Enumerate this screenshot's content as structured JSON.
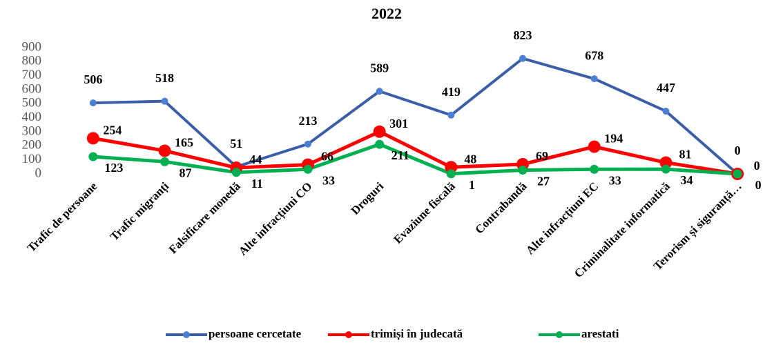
{
  "chart_data": {
    "type": "line",
    "title": "2022",
    "categories": [
      "Trafic de persoane",
      "Trafic migranți",
      "Falsificare monedă",
      "Alte infracțiuni CO",
      "Droguri",
      "Evaziune fiscală",
      "Contrabandă",
      "Alte infracțiuni EC",
      "Criminalitate informatică",
      "Terorism și siguranță…"
    ],
    "series": [
      {
        "name": "persoane cercetate",
        "color": "#3a5ea8",
        "values": [
          506,
          518,
          51,
          213,
          589,
          419,
          823,
          678,
          447,
          0
        ]
      },
      {
        "name": "trimiși în judecată",
        "color": "#ff0000",
        "values": [
          254,
          165,
          44,
          66,
          301,
          48,
          69,
          194,
          81,
          0
        ]
      },
      {
        "name": "arestati",
        "color": "#00b050",
        "values": [
          123,
          87,
          11,
          33,
          211,
          1,
          27,
          33,
          34,
          0
        ]
      }
    ],
    "ylim": [
      0,
      900
    ],
    "yticks": [
      0,
      100,
      200,
      300,
      400,
      500,
      600,
      700,
      800,
      900
    ],
    "legend": "bottom"
  }
}
